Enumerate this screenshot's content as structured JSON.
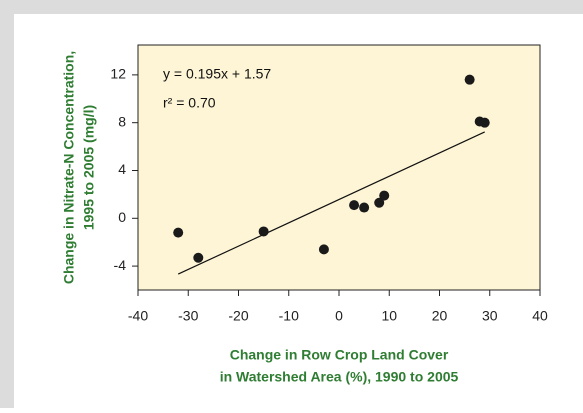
{
  "chart_data": {
    "type": "scatter",
    "x": [
      -32,
      -28,
      -15,
      -3,
      3,
      5,
      8,
      9,
      26,
      28,
      29
    ],
    "values": [
      -1.2,
      -3.3,
      -1.1,
      -2.6,
      1.1,
      0.9,
      1.3,
      1.9,
      11.6,
      8.1,
      8.0
    ],
    "color": "#1a1a1a",
    "xlim": [
      -40,
      40
    ],
    "xticks": [
      -40,
      -30,
      -20,
      -10,
      0,
      10,
      20,
      30,
      40
    ],
    "ylim": [
      -6,
      14.5
    ],
    "yticks": [
      -4,
      0,
      4,
      8,
      12
    ],
    "trendline": {
      "slope": 0.195,
      "intercept": 1.57,
      "x_range": [
        -32,
        29
      ],
      "equation": "y = 0.195x + 1.57",
      "r2": "r² = 0.70"
    },
    "xlabel": [
      "Change in Row Crop Land Cover",
      "in Watershed Area (%), 1990 to 2005"
    ],
    "ylabel": [
      "Change in Nitrate-N Concentration,",
      "1995 to 2005 (mg/l)"
    ]
  }
}
